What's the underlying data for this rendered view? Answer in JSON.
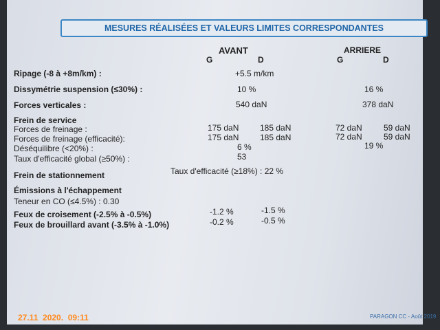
{
  "header": {
    "title": "MESURES RÉALISÉES ET VALEURS LIMITES CORRESPONDANTES"
  },
  "columns": {
    "front": "AVANT",
    "rear": "ARRIERE",
    "front_left": "G",
    "front_right": "D",
    "rear_left": "G",
    "rear_right": "D"
  },
  "rows": [
    {
      "label": "Ripage (-8 à +8m/km) :",
      "values": [
        "+5.5 m/km"
      ]
    },
    {
      "label": "Dissymétrie suspension (≤30%) :",
      "values": [
        "10 %",
        "16 %"
      ]
    },
    {
      "label": "Forces verticales :",
      "values": [
        "540 daN",
        "378 daN"
      ]
    },
    {
      "label": "Frein de service"
    },
    {
      "label": "Forces de freinage :",
      "values": [
        "175 daN",
        "185 daN",
        "72 daN",
        "59 daN"
      ]
    },
    {
      "label": "Forces de freinage (efficacité):",
      "values": [
        "175 daN",
        "185 daN",
        "72 daN",
        "59 daN"
      ]
    },
    {
      "label": "Déséquilibre (<20%) :",
      "values": [
        "6 %",
        "19 %"
      ]
    },
    {
      "label": "Taux d'efficacité global (≥50%) :",
      "values": [
        "53"
      ]
    },
    {
      "label": "Frein de stationnement",
      "values": [
        "Taux d'efficacité (≥18%) : 22 %"
      ]
    },
    {
      "label": "Émissions à l'échappement"
    },
    {
      "label": "Teneur en CO (≤4.5%) : 0.30"
    },
    {
      "label": "Feux de croisement (-2.5% à -0.5%)",
      "values": [
        "-1.2 %",
        "-1.5 %"
      ]
    },
    {
      "label": "Feux de brouillard avant (-3.5% à -1.0%)",
      "values": [
        "-0.2 %",
        "-0.5 %"
      ]
    }
  ],
  "footer": {
    "timestamp": "27.11  2020.  09:11",
    "reference": "PARAGON CC - Août 2019"
  }
}
